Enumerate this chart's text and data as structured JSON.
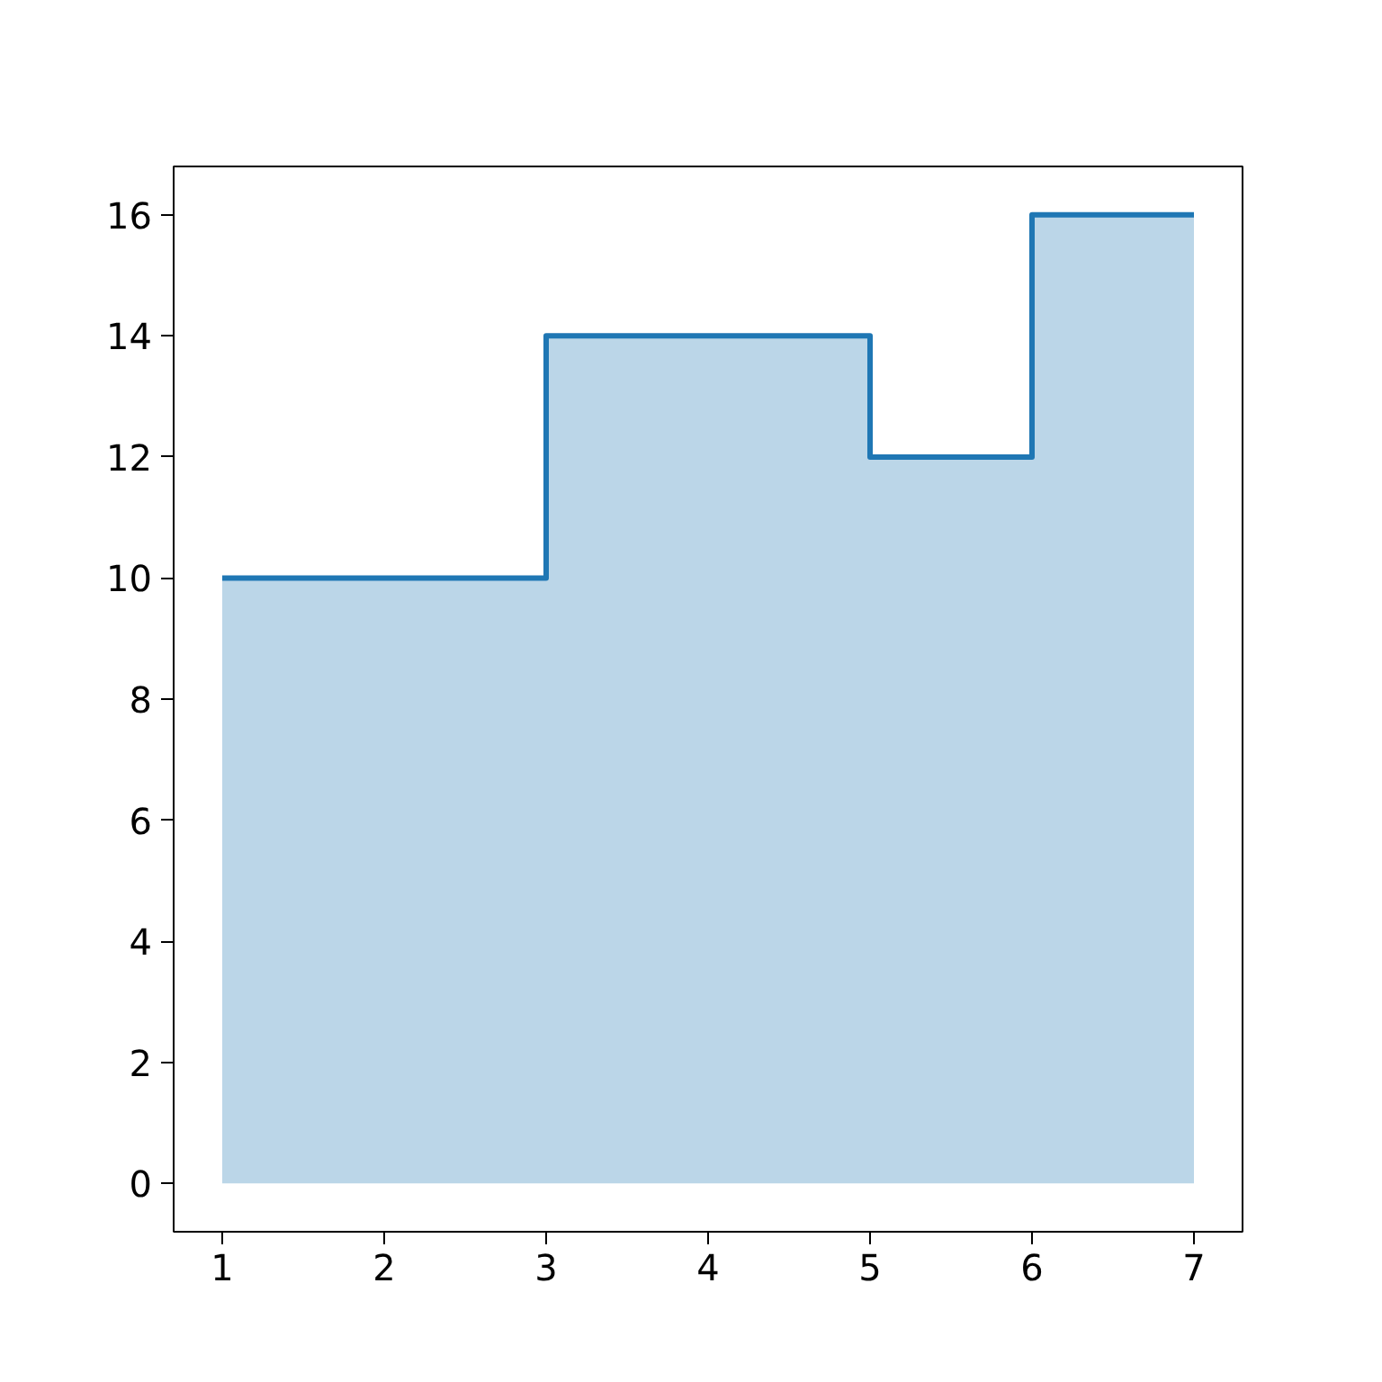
{
  "chart_data": {
    "type": "step",
    "x": [
      1,
      2,
      3,
      4,
      5,
      6,
      7
    ],
    "series": [
      {
        "type": "area",
        "color": "#bbd6e8",
        "values": [
          10,
          10,
          14,
          14,
          12,
          16,
          16
        ]
      },
      {
        "type": "step",
        "color": "#1f77b4",
        "values": [
          10,
          10,
          14,
          14,
          12,
          16,
          16
        ]
      }
    ],
    "xlim": [
      0.7,
      7.3
    ],
    "ylim": [
      -0.8,
      16.8
    ],
    "xticks": [
      1,
      2,
      3,
      4,
      5,
      6,
      7
    ],
    "yticks": [
      0,
      2,
      4,
      6,
      8,
      10,
      12,
      14,
      16
    ],
    "grid": false
  }
}
